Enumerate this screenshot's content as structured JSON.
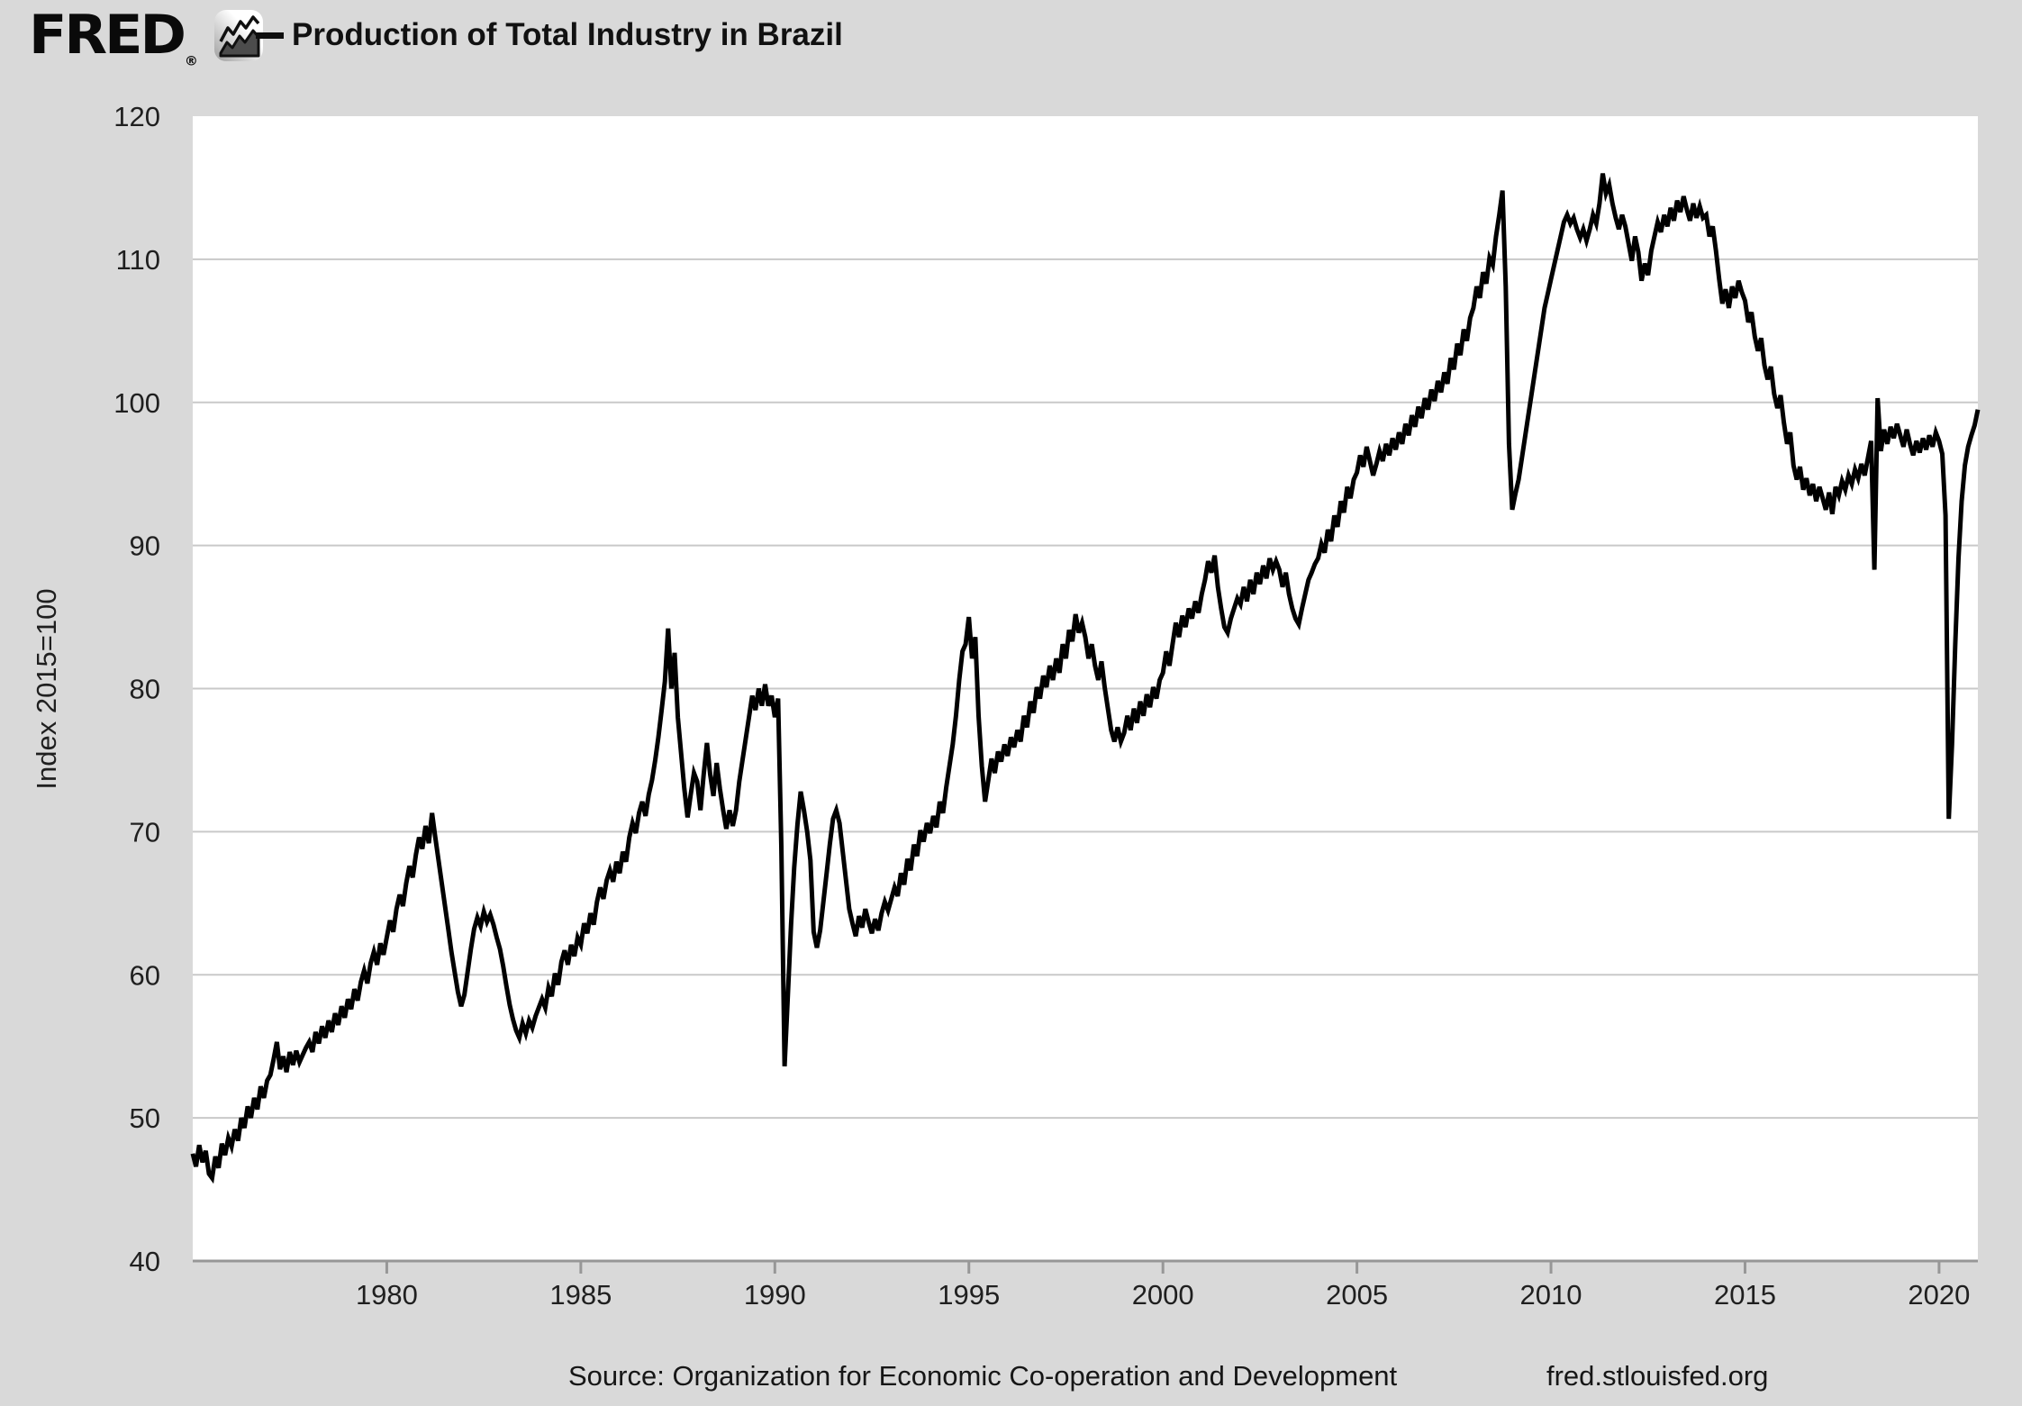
{
  "header": {
    "logo_text": "FRED",
    "registered_mark": "®",
    "series_legend_label": "Production of Total Industry in Brazil"
  },
  "y_axis_label": "Index 2015=100",
  "footer": {
    "source": "Source: Organization for Economic Co-operation and Development",
    "site": "fred.stlouisfed.org"
  },
  "colors": {
    "background": "#d9d9d9",
    "plot_background": "#ffffff",
    "gridline": "#c9c9c9",
    "axis": "#979797",
    "line": "#000000",
    "text": "#1f1f1f"
  },
  "chart_data": {
    "type": "line",
    "title": "Production of Total Industry in Brazil",
    "xlabel": "",
    "ylabel": "Index 2015=100",
    "frequency": "monthly",
    "x_start_year": 1975,
    "x_end_year": 2021,
    "ylim": [
      40,
      120
    ],
    "y_ticks": [
      40,
      50,
      60,
      70,
      80,
      90,
      100,
      110,
      120
    ],
    "x_ticks": [
      1980,
      1985,
      1990,
      1995,
      2000,
      2005,
      2010,
      2015,
      2020
    ],
    "grid": "horizontal",
    "legend_position": "top-left",
    "values": [
      47.5,
      46.6,
      48.1,
      46.9,
      47.7,
      46.1,
      45.8,
      47.3,
      46.5,
      48.2,
      47.4,
      48.6,
      48.0,
      49.2,
      48.4,
      50.0,
      49.3,
      50.8,
      50.0,
      51.4,
      50.6,
      52.2,
      51.4,
      52.6,
      53.0,
      54.1,
      55.3,
      53.4,
      54.3,
      53.2,
      54.6,
      53.7,
      54.7,
      53.9,
      54.4,
      54.9,
      55.3,
      54.6,
      56.0,
      55.2,
      56.4,
      55.6,
      56.8,
      56.0,
      57.3,
      56.5,
      57.8,
      57.0,
      58.3,
      57.6,
      59.0,
      58.2,
      59.5,
      60.3,
      59.4,
      60.8,
      61.6,
      60.7,
      62.2,
      61.4,
      62.6,
      63.8,
      63.0,
      64.6,
      65.6,
      64.8,
      66.4,
      67.6,
      66.8,
      68.4,
      69.6,
      68.8,
      70.4,
      69.2,
      71.3,
      69.6,
      68.0,
      66.4,
      64.8,
      63.2,
      61.6,
      60.2,
      58.8,
      57.8,
      58.6,
      60.2,
      61.8,
      63.2,
      64.0,
      63.4,
      64.4,
      63.7,
      64.2,
      63.5,
      62.6,
      61.8,
      60.6,
      59.2,
      57.9,
      56.9,
      56.1,
      55.6,
      56.6,
      55.9,
      56.8,
      56.3,
      57.1,
      57.7,
      58.3,
      57.7,
      59.1,
      58.5,
      60.1,
      59.3,
      60.9,
      61.7,
      60.7,
      62.1,
      61.3,
      62.6,
      62.1,
      63.6,
      62.9,
      64.3,
      63.5,
      65.1,
      66.1,
      65.3,
      66.6,
      67.3,
      66.5,
      67.9,
      67.1,
      68.6,
      67.9,
      69.6,
      70.6,
      69.9,
      71.3,
      72.1,
      71.1,
      72.6,
      73.6,
      75.0,
      76.6,
      78.5,
      80.5,
      84.2,
      80.0,
      82.5,
      78.0,
      75.5,
      73.0,
      71.0,
      72.6,
      74.1,
      73.5,
      71.5,
      74.0,
      76.2,
      74.0,
      72.5,
      74.8,
      73.0,
      71.5,
      70.2,
      71.5,
      70.4,
      71.5,
      73.5,
      75.0,
      76.5,
      78.0,
      79.5,
      78.5,
      80.0,
      78.8,
      80.3,
      78.8,
      79.5,
      78.0,
      79.3,
      69.0,
      53.6,
      58.5,
      63.5,
      67.5,
      70.5,
      72.8,
      71.5,
      70.0,
      68.0,
      63.0,
      61.9,
      63.1,
      65.1,
      67.1,
      69.1,
      70.9,
      71.5,
      70.6,
      68.6,
      66.6,
      64.6,
      63.6,
      62.7,
      64.1,
      63.3,
      64.6,
      63.7,
      62.9,
      63.9,
      63.1,
      64.3,
      65.1,
      64.5,
      65.3,
      66.1,
      65.5,
      67.1,
      66.3,
      68.1,
      67.3,
      69.1,
      68.3,
      70.1,
      69.3,
      70.6,
      69.9,
      71.1,
      70.3,
      72.1,
      71.3,
      73.1,
      74.6,
      76.1,
      78.1,
      80.6,
      82.6,
      83.1,
      85.0,
      82.1,
      83.6,
      78.1,
      74.6,
      72.1,
      73.6,
      75.1,
      74.1,
      75.6,
      74.9,
      76.1,
      75.3,
      76.6,
      75.9,
      77.1,
      76.3,
      78.1,
      77.3,
      79.1,
      78.3,
      80.1,
      79.3,
      80.9,
      80.1,
      81.6,
      80.6,
      82.1,
      81.1,
      83.1,
      82.1,
      84.1,
      83.3,
      85.2,
      83.9,
      84.6,
      83.6,
      82.1,
      83.1,
      81.6,
      80.6,
      81.9,
      80.1,
      78.6,
      77.1,
      76.3,
      77.3,
      76.3,
      76.9,
      78.1,
      77.1,
      78.6,
      77.6,
      79.1,
      78.1,
      79.6,
      78.7,
      80.1,
      79.3,
      80.6,
      81.1,
      82.6,
      81.6,
      83.1,
      84.6,
      83.6,
      85.1,
      84.3,
      85.6,
      84.9,
      86.1,
      85.3,
      86.6,
      87.6,
      88.9,
      88.1,
      89.3,
      87.1,
      85.6,
      84.3,
      83.9,
      84.9,
      85.6,
      86.3,
      85.9,
      87.1,
      86.1,
      87.6,
      86.6,
      88.1,
      87.3,
      88.6,
      87.7,
      89.1,
      88.3,
      88.9,
      88.3,
      87.1,
      88.1,
      86.6,
      85.6,
      84.9,
      84.5,
      85.6,
      86.6,
      87.6,
      88.1,
      88.7,
      89.1,
      90.1,
      89.5,
      91.1,
      90.3,
      92.1,
      91.3,
      93.1,
      92.3,
      94.1,
      93.3,
      94.6,
      95.1,
      96.3,
      95.5,
      96.9,
      95.9,
      94.9,
      95.7,
      96.6,
      95.9,
      97.1,
      96.3,
      97.5,
      96.7,
      97.9,
      97.1,
      98.5,
      97.7,
      99.1,
      98.3,
      99.7,
      98.9,
      100.3,
      99.5,
      100.9,
      100.1,
      101.5,
      100.7,
      102.1,
      101.3,
      103.1,
      102.3,
      104.1,
      103.3,
      105.1,
      104.3,
      105.9,
      106.6,
      108.1,
      107.3,
      109.1,
      108.3,
      110.1,
      109.6,
      111.6,
      113.1,
      114.8,
      108.1,
      97.1,
      92.5,
      93.6,
      94.6,
      96.1,
      97.6,
      99.1,
      100.6,
      102.1,
      103.6,
      105.1,
      106.6,
      107.6,
      108.6,
      109.6,
      110.6,
      111.6,
      112.6,
      113.1,
      112.5,
      112.9,
      112.1,
      111.5,
      112.1,
      111.3,
      112.1,
      113.1,
      112.5,
      113.9,
      116.0,
      114.6,
      115.2,
      113.9,
      112.9,
      112.1,
      113.1,
      112.3,
      111.1,
      109.9,
      111.6,
      110.5,
      108.5,
      109.7,
      108.9,
      110.6,
      111.6,
      112.6,
      111.9,
      113.1,
      112.3,
      113.6,
      112.7,
      114.1,
      113.3,
      114.4,
      113.5,
      112.7,
      113.9,
      112.9,
      113.7,
      112.9,
      113.1,
      111.6,
      112.3,
      110.6,
      108.6,
      106.9,
      107.9,
      106.6,
      108.1,
      107.3,
      108.5,
      107.7,
      107.1,
      105.6,
      106.3,
      104.6,
      103.6,
      104.5,
      102.6,
      101.6,
      102.5,
      100.6,
      99.6,
      100.5,
      98.6,
      97.1,
      97.9,
      95.6,
      94.6,
      95.5,
      93.9,
      94.7,
      93.5,
      94.3,
      93.1,
      94.1,
      93.3,
      92.5,
      93.7,
      92.2,
      94.1,
      93.5,
      94.5,
      93.9,
      94.9,
      94.3,
      95.3,
      94.7,
      95.7,
      94.9,
      96.1,
      97.3,
      88.3,
      100.3,
      96.6,
      98.1,
      97.1,
      98.3,
      97.5,
      98.5,
      97.7,
      96.9,
      98.1,
      97.1,
      96.3,
      97.3,
      96.5,
      97.5,
      96.7,
      97.7,
      96.9,
      97.9,
      97.3,
      96.4,
      92.1,
      70.9,
      76.1,
      83.1,
      89.1,
      93.1,
      95.6,
      96.9,
      97.7,
      98.4,
      99.5
    ]
  }
}
